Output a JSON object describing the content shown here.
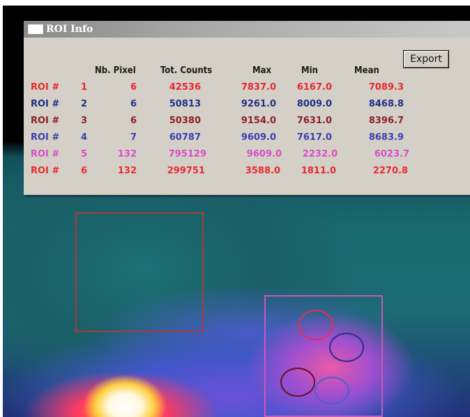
{
  "window": {
    "title": "ROI Info",
    "export_label": "Export"
  },
  "table": {
    "headers": [
      "Nb. Pixel",
      "Tot. Counts",
      "Max",
      "Min",
      "Mean"
    ],
    "rows": [
      {
        "label": "ROI #",
        "id": "1",
        "pixels": "6",
        "counts": "42536",
        "max": "7837.0",
        "min": "6167.0",
        "mean": "7089.3",
        "color": "#e8292e"
      },
      {
        "label": "ROI #",
        "id": "2",
        "pixels": "6",
        "counts": "50813",
        "max": "9261.0",
        "min": "8009.0",
        "mean": "8468.8",
        "color": "#1f2f86"
      },
      {
        "label": "ROI #",
        "id": "3",
        "pixels": "6",
        "counts": "50380",
        "max": "9154.0",
        "min": "7631.0",
        "mean": "8396.7",
        "color": "#8e1f24"
      },
      {
        "label": "ROI #",
        "id": "4",
        "pixels": "7",
        "counts": "60787",
        "max": "9609.0",
        "min": "7617.0",
        "mean": "8683.9",
        "color": "#3a3fb0"
      },
      {
        "label": "ROI #",
        "id": "5",
        "pixels": "132",
        "counts": "795129",
        "max": "9609.0",
        "min": "2232.0",
        "mean": "6023.7",
        "color": "#d64fc2"
      },
      {
        "label": "ROI #",
        "id": "6",
        "pixels": "132",
        "counts": "299751",
        "max": "3588.0",
        "min": "1811.0",
        "mean": "2270.8",
        "color": "#e8292e"
      }
    ]
  },
  "overlay_colors": {
    "roi_square": "#a83a3e",
    "roi_region": "#c85ab8",
    "roi_1": "#ee2a4a",
    "roi_2": "#2a2f8a",
    "roi_3": "#6a1020",
    "roi_4": "#4a63c8"
  }
}
